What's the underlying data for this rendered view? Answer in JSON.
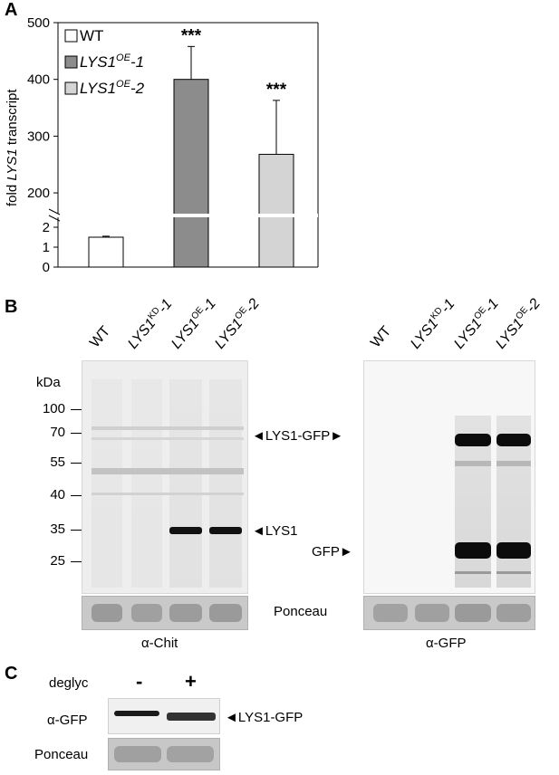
{
  "panelA": {
    "letter": "A",
    "chart_data": {
      "type": "bar",
      "categories": [
        "WT",
        "LYS1OE-1",
        "LYS1OE-2"
      ],
      "values": [
        1.5,
        400,
        268
      ],
      "errors": [
        0.05,
        58,
        95
      ],
      "significance": [
        "",
        "***",
        "***"
      ],
      "ylabel_pre": "fold ",
      "ylabel_gene": "LYS1",
      "ylabel_post": " transcript",
      "yticks_upper": [
        200,
        300,
        400,
        500
      ],
      "yticks_lower": [
        0,
        1,
        2
      ],
      "ylim_upper": [
        165,
        500
      ],
      "ylim_lower": [
        0,
        2.5
      ],
      "axis_break": true,
      "legend": {
        "placement": "top-left",
        "entries": [
          {
            "base": "WT",
            "sup": "",
            "suffix": "",
            "color": "#ffffff"
          },
          {
            "base": "LYS1",
            "sup": "OE",
            "suffix": "-1",
            "color": "#8c8c8c"
          },
          {
            "base": "LYS1",
            "sup": "OE",
            "suffix": "-2",
            "color": "#d4d4d4"
          }
        ]
      },
      "colors": [
        "#ffffff",
        "#8c8c8c",
        "#d4d4d4"
      ]
    }
  },
  "panelB": {
    "letter": "B",
    "lanes": [
      {
        "base": "WT",
        "sup": "",
        "suffix": ""
      },
      {
        "base": "LYS1",
        "sup": "KD",
        "suffix": "-1"
      },
      {
        "base": "LYS1",
        "sup": "OE",
        "suffix": "-1"
      },
      {
        "base": "LYS1",
        "sup": "OE",
        "suffix": "-2"
      }
    ],
    "kda_title": "kDa",
    "markers": [
      "100",
      "70",
      "55",
      "40",
      "35",
      "25"
    ],
    "annot_lys1gfp": "LYS1-GFP",
    "annot_lys1": "LYS1",
    "annot_gfp": "GFP",
    "ponceau": "Ponceau",
    "antibody_left": "α-Chit",
    "antibody_right": "α-GFP"
  },
  "panelC": {
    "letter": "C",
    "title": "deglyc",
    "minus": "-",
    "plus": "+",
    "row1": "α-GFP",
    "row2": "Ponceau",
    "annot": "LYS1-GFP"
  }
}
